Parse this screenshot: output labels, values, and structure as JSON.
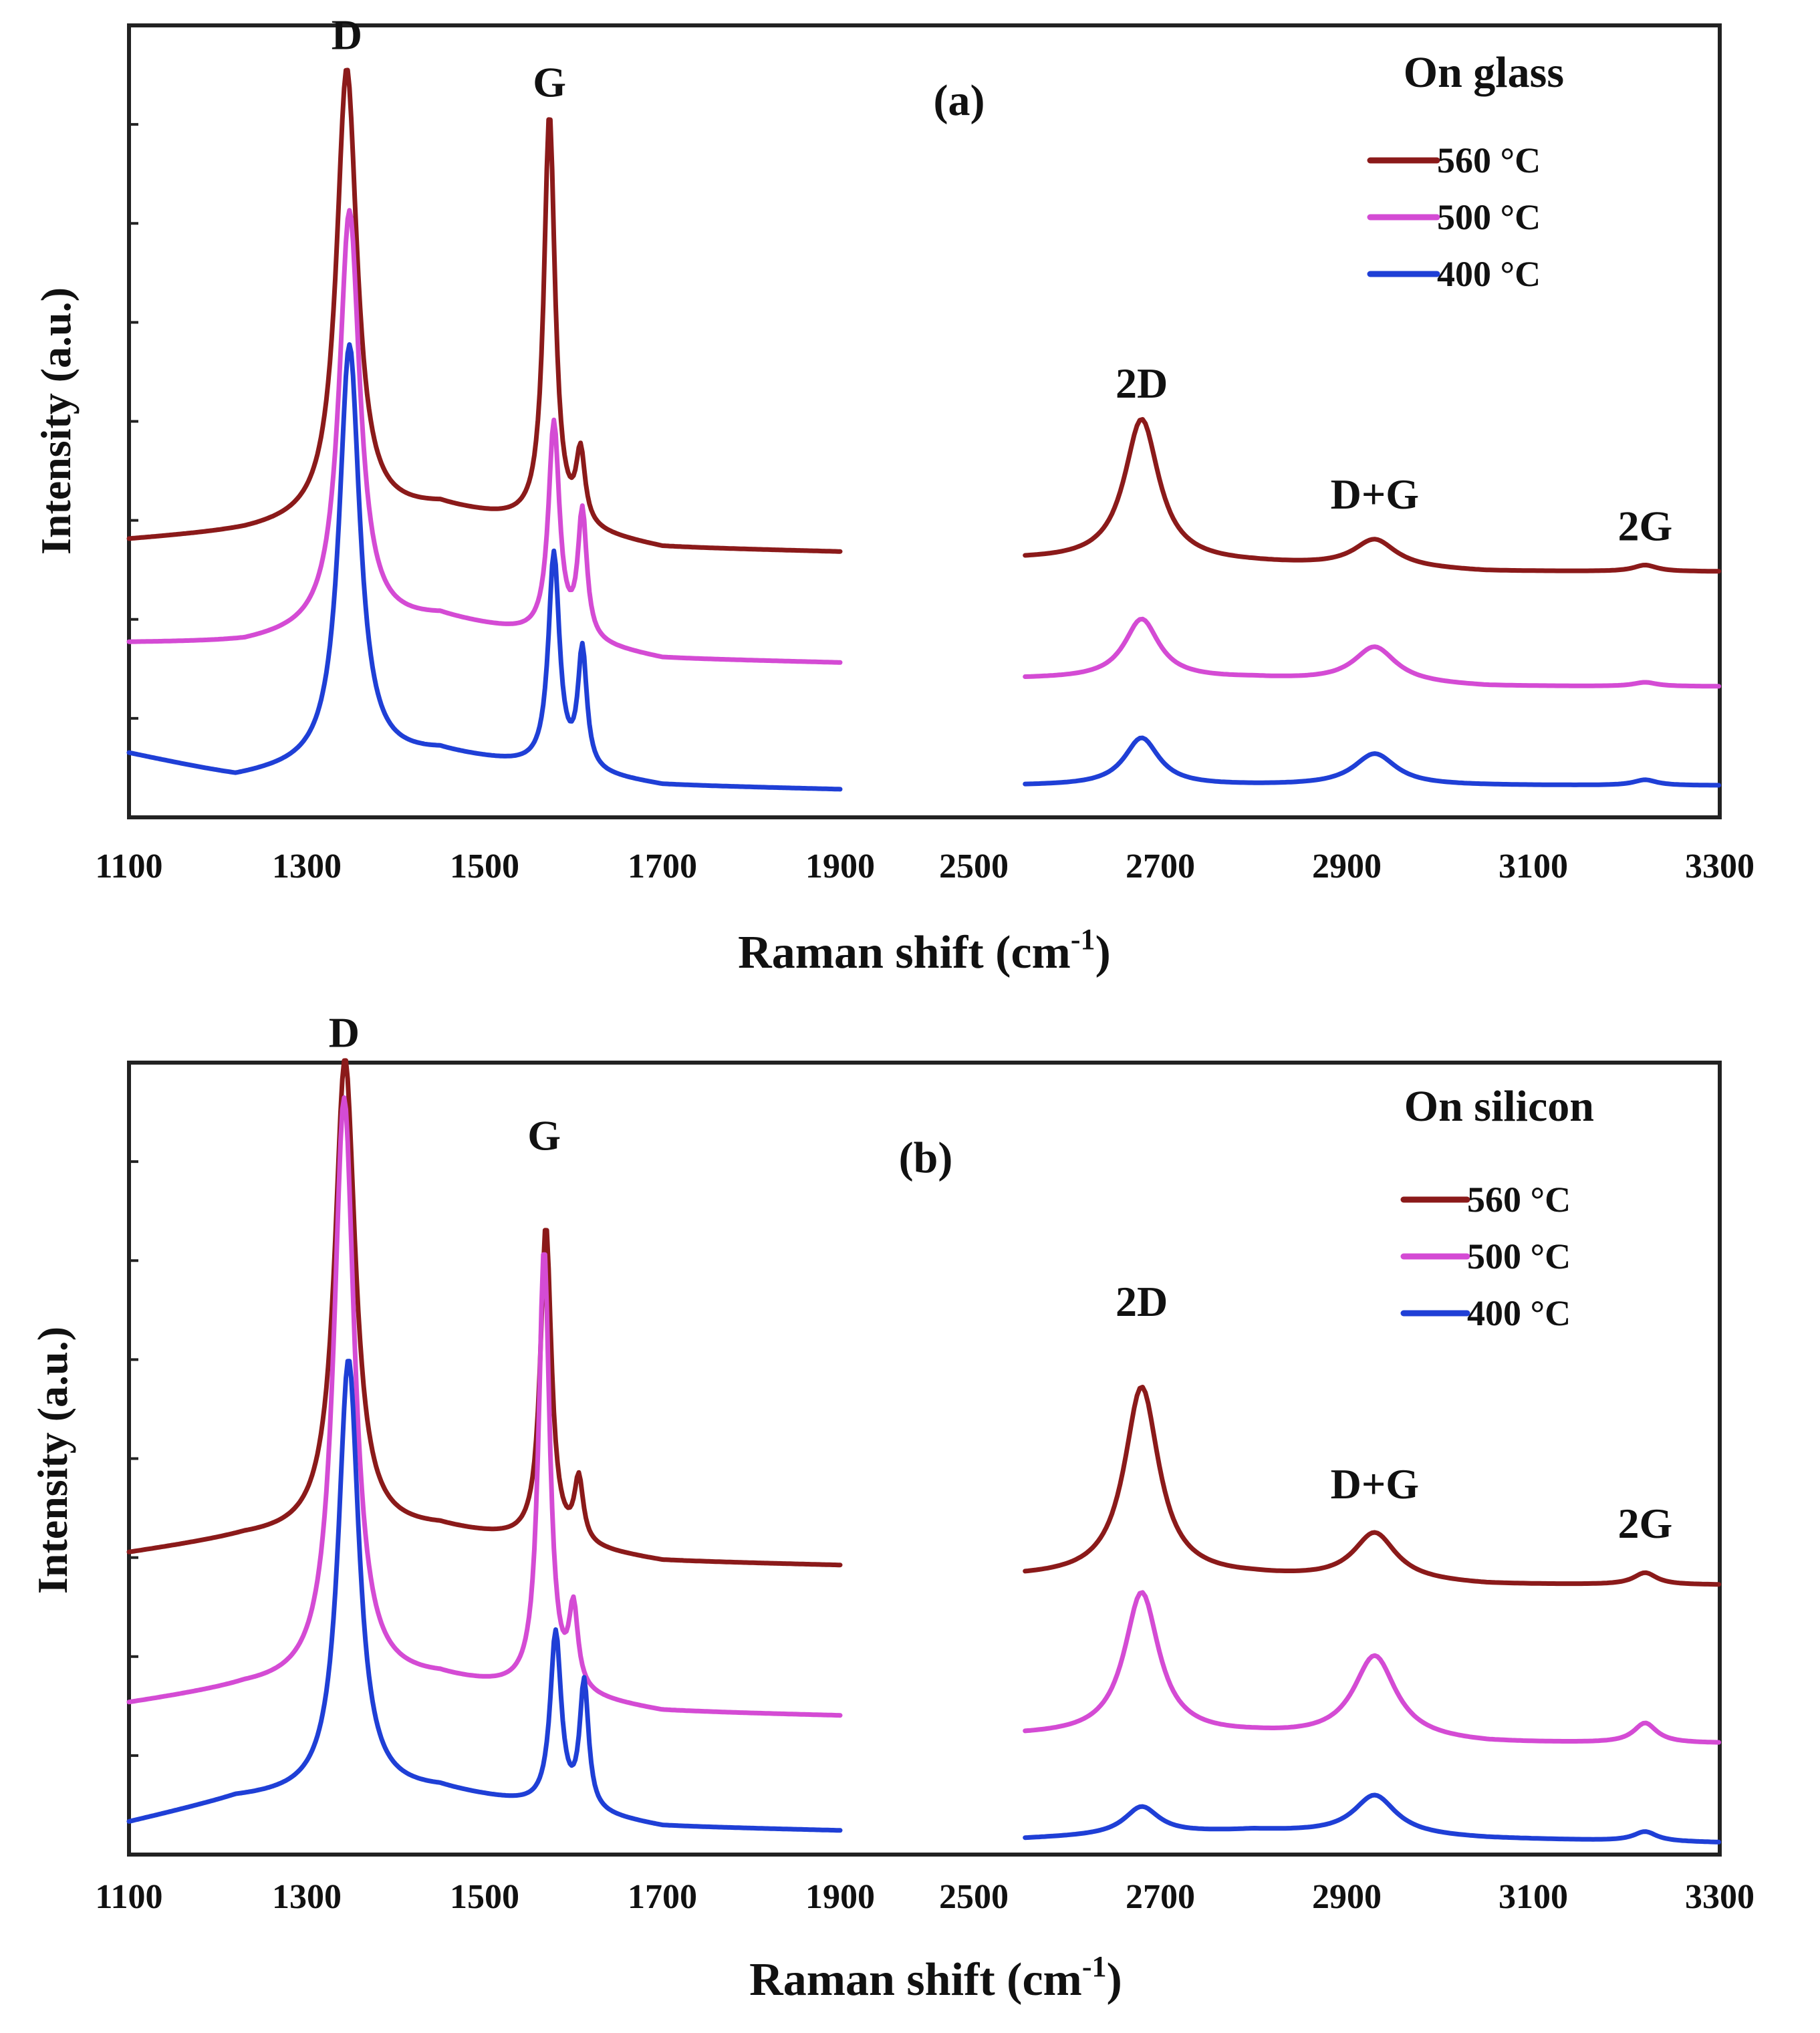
{
  "chart_data": [
    {
      "type": "line",
      "panel_label": "(a)",
      "substrate_label": "On glass",
      "xlabel_main": "Raman shift (cm",
      "xlabel_sup": "-1",
      "xlabel_close": ")",
      "ylabel": "Intensity (a.u.)",
      "x_ticks_left": [
        "1100",
        "1300",
        "1500",
        "1700",
        "1900"
      ],
      "x_ticks_right": [
        "2500",
        "2700",
        "2900",
        "3100",
        "3300"
      ],
      "xlim_left": [
        1100,
        1900
      ],
      "xlim_right": [
        2500,
        3300
      ],
      "ylim": [
        0,
        100
      ],
      "y_tick_count": 7,
      "peak_labels": [
        {
          "text": "D",
          "x": 1345,
          "y": 97
        },
        {
          "text": "G",
          "x": 1573,
          "y": 91
        },
        {
          "text": "2D",
          "x": 2680,
          "y": 53
        },
        {
          "text": "D+G",
          "x": 2930,
          "y": 39
        },
        {
          "text": "2G",
          "x": 3220,
          "y": 35
        }
      ],
      "series": [
        {
          "name": "560 °C",
          "color": "#8b1a1a",
          "baseline": [
            [
              1100,
              35
            ],
            [
              1230,
              36
            ],
            [
              1450,
              39
            ],
            [
              1700,
              34
            ],
            [
              1900,
              33.5
            ]
          ],
          "peaks": [
            [
              1345,
              57,
              28
            ],
            [
              1573,
              52,
              15
            ],
            [
              1608,
              9,
              12
            ]
          ],
          "baseline_right": [
            [
              2555,
              32.5
            ],
            [
              2800,
              32
            ],
            [
              3050,
              31
            ],
            [
              3300,
              31
            ]
          ],
          "peaks_right": [
            [
              2680,
              18,
              45
            ],
            [
              2930,
              3.5,
              55
            ],
            [
              3220,
              0.8,
              30
            ]
          ]
        },
        {
          "name": "500 °C",
          "color": "#d44bd4",
          "baseline": [
            [
              1100,
              22
            ],
            [
              1230,
              22
            ],
            [
              1450,
              25
            ],
            [
              1700,
              20
            ],
            [
              1900,
              19.5
            ]
          ],
          "peaks": [
            [
              1348,
              53,
              28
            ],
            [
              1578,
              27,
              15
            ],
            [
              1610,
              16,
              12
            ]
          ],
          "baseline_right": [
            [
              2555,
              17.5
            ],
            [
              2800,
              17.5
            ],
            [
              3050,
              16.5
            ],
            [
              3300,
              16.5
            ]
          ],
          "peaks_right": [
            [
              2680,
              7.5,
              45
            ],
            [
              2930,
              4.5,
              55
            ],
            [
              3220,
              0.5,
              30
            ]
          ]
        },
        {
          "name": "400 °C",
          "color": "#1f3fd6",
          "baseline": [
            [
              1100,
              8
            ],
            [
              1220,
              5
            ],
            [
              1450,
              8
            ],
            [
              1700,
              4
            ],
            [
              1900,
              3.5
            ]
          ],
          "peaks": [
            [
              1348,
              53,
              28
            ],
            [
              1578,
              27,
              15
            ],
            [
              1610,
              15,
              12
            ]
          ],
          "baseline_right": [
            [
              2555,
              4
            ],
            [
              2800,
              4
            ],
            [
              3050,
              4
            ],
            [
              3300,
              4
            ]
          ],
          "peaks_right": [
            [
              2680,
              6,
              45
            ],
            [
              2930,
              4,
              55
            ],
            [
              3220,
              0.7,
              30
            ]
          ]
        }
      ]
    },
    {
      "type": "line",
      "panel_label": "(b)",
      "substrate_label": "On silicon",
      "xlabel_main": "Raman shift (cm",
      "xlabel_sup": "-1",
      "xlabel_close": ")",
      "ylabel": "Intensity (a.u.)",
      "x_ticks_left": [
        "1100",
        "1300",
        "1500",
        "1700",
        "1900"
      ],
      "x_ticks_right": [
        "2500",
        "2700",
        "2900",
        "3100",
        "3300"
      ],
      "xlim_left": [
        1100,
        1900
      ],
      "xlim_right": [
        2500,
        3300
      ],
      "ylim": [
        0,
        100
      ],
      "y_tick_count": 7,
      "peak_labels": [
        {
          "text": "D",
          "x": 1342,
          "y": 102
        },
        {
          "text": "G",
          "x": 1567,
          "y": 89
        },
        {
          "text": "2D",
          "x": 2680,
          "y": 68
        },
        {
          "text": "D+G",
          "x": 2930,
          "y": 45
        },
        {
          "text": "2G",
          "x": 3220,
          "y": 40
        }
      ],
      "series": [
        {
          "name": "560 °C",
          "color": "#8b1a1a",
          "baseline": [
            [
              1100,
              38
            ],
            [
              1230,
              40
            ],
            [
              1450,
              41
            ],
            [
              1700,
              37
            ],
            [
              1900,
              36.5
            ]
          ],
          "peaks": [
            [
              1343,
              60,
              28
            ],
            [
              1569,
              40,
              15
            ],
            [
              1606,
              8,
              12
            ]
          ],
          "baseline_right": [
            [
              2555,
              35
            ],
            [
              2800,
              35
            ],
            [
              3050,
              34
            ],
            [
              3300,
              34
            ]
          ],
          "peaks_right": [
            [
              2680,
              24,
              45
            ],
            [
              2930,
              6,
              55
            ],
            [
              3220,
              1.5,
              30
            ]
          ]
        },
        {
          "name": "500 °C",
          "color": "#d44bd4",
          "baseline": [
            [
              1100,
              19
            ],
            [
              1230,
              21
            ],
            [
              1450,
              22
            ],
            [
              1700,
              18
            ],
            [
              1900,
              17.5
            ]
          ],
          "peaks": [
            [
              1342,
              74,
              28
            ],
            [
              1567,
              56,
              15
            ],
            [
              1600,
              10,
              12
            ]
          ],
          "baseline_right": [
            [
              2555,
              15
            ],
            [
              2800,
              15
            ],
            [
              3050,
              14
            ],
            [
              3300,
              14
            ]
          ],
          "peaks_right": [
            [
              2680,
              18,
              45
            ],
            [
              2930,
              10.5,
              55
            ],
            [
              3220,
              2.5,
              30
            ]
          ]
        },
        {
          "name": "400 °C",
          "color": "#1f3fd6",
          "baseline": [
            [
              1100,
              4
            ],
            [
              1220,
              7
            ],
            [
              1450,
              8
            ],
            [
              1700,
              3.5
            ],
            [
              1900,
              3
            ]
          ],
          "peaks": [
            [
              1347,
              55,
              28
            ],
            [
              1580,
              22,
              15
            ],
            [
              1612,
              16,
              12
            ]
          ],
          "baseline_right": [
            [
              2555,
              2
            ],
            [
              2800,
              3
            ],
            [
              3050,
              2
            ],
            [
              3300,
              1.5
            ]
          ],
          "peaks_right": [
            [
              2680,
              3.5,
              45
            ],
            [
              2930,
              5,
              55
            ],
            [
              3220,
              1.2,
              30
            ]
          ]
        }
      ]
    }
  ]
}
